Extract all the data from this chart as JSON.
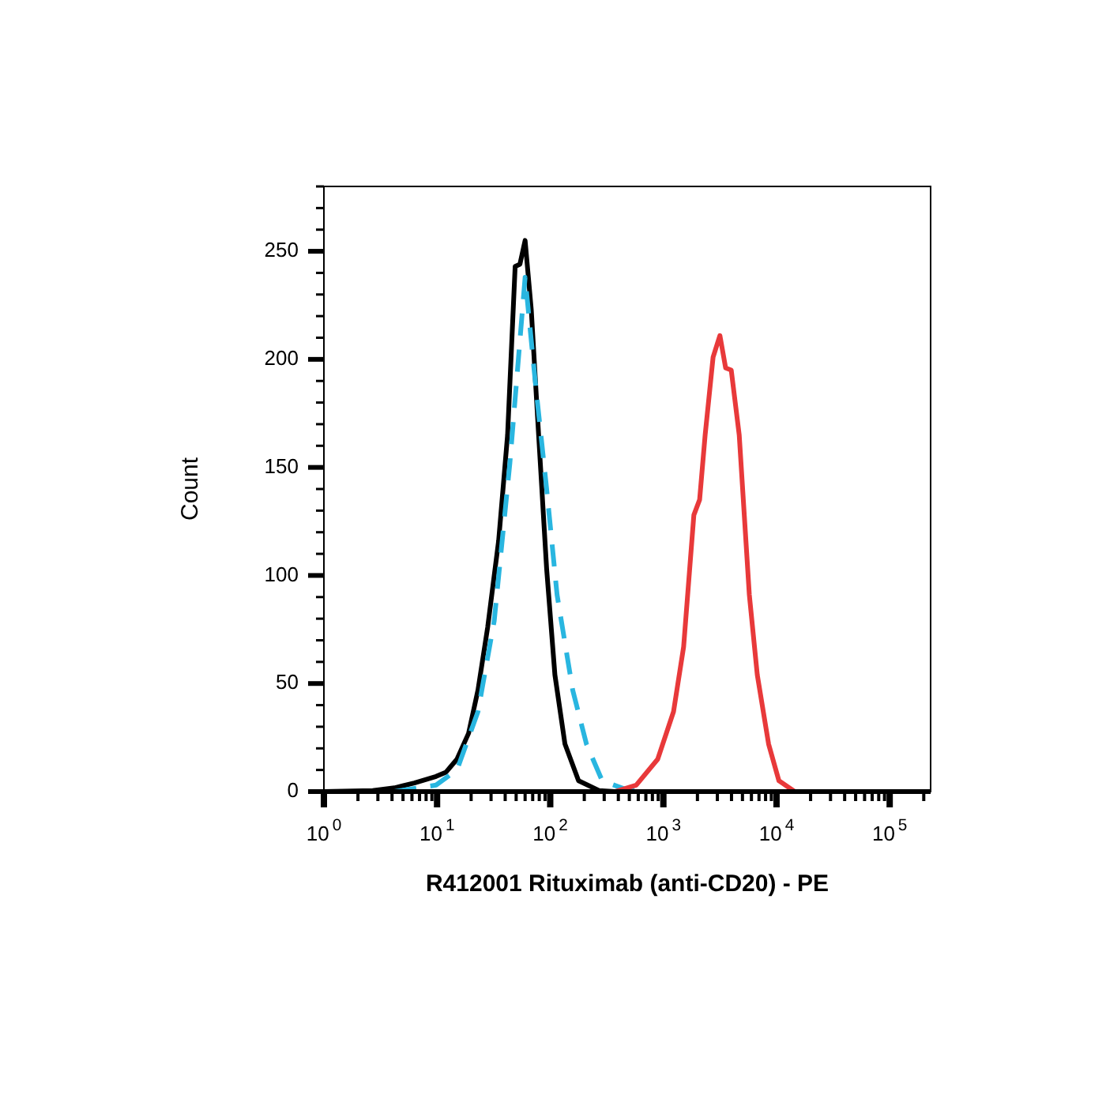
{
  "chart_data": {
    "type": "line",
    "xlabel": "R412001 Rituximab (anti-CD20) - PE",
    "ylabel": "Count",
    "log": "x",
    "grid": false,
    "legend": false,
    "marker": "none",
    "line_style": "solid",
    "xlim": [
      1,
      230000
    ],
    "ylim": [
      0,
      280
    ],
    "xticks": [
      {
        "value": 1,
        "label": "10$^{0}$"
      },
      {
        "value": 2,
        "label": null
      },
      {
        "value": 3,
        "label": null
      },
      {
        "value": 4,
        "label": null
      },
      {
        "value": 5,
        "label": null
      },
      {
        "value": 6,
        "label": null
      },
      {
        "value": 7,
        "label": null
      },
      {
        "value": 8,
        "label": null
      },
      {
        "value": 9,
        "label": null
      },
      {
        "value": 10,
        "label": "10$^{1}$"
      },
      {
        "value": 20,
        "label": null
      },
      {
        "value": 30,
        "label": null
      },
      {
        "value": 40,
        "label": null
      },
      {
        "value": 50,
        "label": null
      },
      {
        "value": 60,
        "label": null
      },
      {
        "value": 70,
        "label": null
      },
      {
        "value": 80,
        "label": null
      },
      {
        "value": 90,
        "label": null
      },
      {
        "value": 100,
        "label": "10$^{2}$"
      },
      {
        "value": 200,
        "label": null
      },
      {
        "value": 300,
        "label": null
      },
      {
        "value": 400,
        "label": null
      },
      {
        "value": 500,
        "label": null
      },
      {
        "value": 600,
        "label": null
      },
      {
        "value": 700,
        "label": null
      },
      {
        "value": 800,
        "label": null
      },
      {
        "value": 900,
        "label": null
      },
      {
        "value": 1000,
        "label": "10$^{3}$"
      },
      {
        "value": 2000,
        "label": null
      },
      {
        "value": 3000,
        "label": null
      },
      {
        "value": 4000,
        "label": null
      },
      {
        "value": 5000,
        "label": null
      },
      {
        "value": 6000,
        "label": null
      },
      {
        "value": 7000,
        "label": null
      },
      {
        "value": 8000,
        "label": null
      },
      {
        "value": 9000,
        "label": null
      },
      {
        "value": 10000,
        "label": "10$^{4}$"
      },
      {
        "value": 20000,
        "label": null
      },
      {
        "value": 30000,
        "label": null
      },
      {
        "value": 40000,
        "label": null
      },
      {
        "value": 50000,
        "label": null
      },
      {
        "value": 60000,
        "label": null
      },
      {
        "value": 70000,
        "label": null
      },
      {
        "value": 80000,
        "label": null
      },
      {
        "value": 90000,
        "label": null
      },
      {
        "value": 100000,
        "label": "10$^{5}$"
      },
      {
        "value": 200000,
        "label": null
      }
    ],
    "yticks": [
      0,
      {
        "value": 10,
        "label": null
      },
      {
        "value": 20,
        "label": null
      },
      {
        "value": 30,
        "label": null
      },
      {
        "value": 40,
        "label": null
      },
      50,
      {
        "value": 60,
        "label": null
      },
      {
        "value": 70,
        "label": null
      },
      {
        "value": 80,
        "label": null
      },
      {
        "value": 90,
        "label": null
      },
      100,
      {
        "value": 110,
        "label": null
      },
      {
        "value": 120,
        "label": null
      },
      {
        "value": 130,
        "label": null
      },
      {
        "value": 140,
        "label": null
      },
      150,
      {
        "value": 160,
        "label": null
      },
      {
        "value": 170,
        "label": null
      },
      {
        "value": 180,
        "label": null
      },
      {
        "value": 190,
        "label": null
      },
      200,
      {
        "value": 210,
        "label": null
      },
      {
        "value": 220,
        "label": null
      },
      {
        "value": 230,
        "label": null
      },
      {
        "value": 240,
        "label": null
      },
      250,
      {
        "value": 260,
        "label": null
      },
      {
        "value": 270,
        "label": null
      },
      {
        "value": 280,
        "label": null
      }
    ],
    "series": [
      {
        "color": "#e8393a",
        "x": [
          5.8,
          372,
          575,
          891,
          1230,
          1510,
          1860,
          2090,
          2340,
          2750,
          3160,
          3550,
          3980,
          4680,
          5750,
          6760,
          8510,
          10500,
          14500
        ],
        "values": [
          0,
          0,
          3,
          15,
          37,
          67,
          128,
          135,
          165,
          201,
          211,
          196,
          195,
          165,
          91,
          54,
          22,
          5,
          0
        ]
      },
      {
        "color": "#29b6e0",
        "line_style": "dashed",
        "x": [
          4.2,
          9.8,
          15,
          23,
          32,
          44,
          60,
          74,
          93,
          115,
          158,
          209,
          288,
          468,
          646,
          230000
        ],
        "values": [
          0,
          3,
          10,
          37,
          79,
          152,
          238,
          189,
          140,
          91,
          47,
          22,
          5,
          1,
          0,
          0
        ]
      },
      {
        "color": "#000000",
        "x": [
          1,
          2.7,
          4.2,
          6.3,
          9.8,
          12,
          15,
          19,
          23,
          28,
          35,
          42,
          49,
          54,
          60,
          68,
          79,
          93,
          110,
          135,
          178,
          270,
          372,
          230000
        ],
        "values": [
          0,
          0.5,
          1.7,
          4,
          7,
          9,
          15,
          27,
          47,
          76,
          116,
          165,
          243,
          244,
          255,
          223,
          165,
          103,
          54,
          22,
          5,
          0.5,
          0,
          0
        ]
      }
    ]
  }
}
